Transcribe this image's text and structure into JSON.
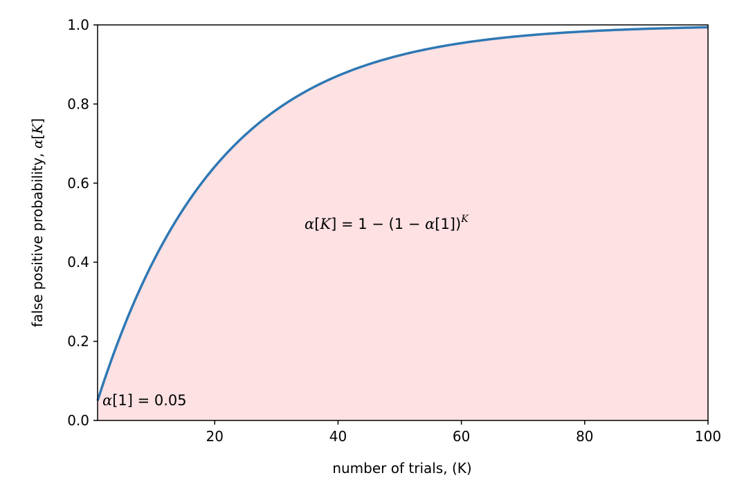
{
  "chart_data": {
    "type": "area",
    "xlabel": "number of trials, (K)",
    "ylabel_parts": {
      "main": "false positive probability, ",
      "symbol": "α",
      "open": "[",
      "var": "K",
      "close": "]"
    },
    "xlim": [
      1,
      100
    ],
    "ylim": [
      0.0,
      1.0
    ],
    "xticks": [
      20,
      40,
      60,
      80,
      100
    ],
    "xtick_labels": [
      "20",
      "40",
      "60",
      "80",
      "100"
    ],
    "yticks": [
      0.0,
      0.2,
      0.4,
      0.6,
      0.8,
      1.0
    ],
    "ytick_labels": [
      "0.0",
      "0.2",
      "0.4",
      "0.6",
      "0.8",
      "1.0"
    ],
    "alpha1": 0.05,
    "x": [
      1,
      2,
      3,
      4,
      5,
      6,
      8,
      10,
      12,
      15,
      20,
      25,
      30,
      35,
      40,
      45,
      50,
      55,
      60,
      65,
      70,
      75,
      80,
      85,
      90,
      95,
      100
    ],
    "y": [
      0.05,
      0.0975,
      0.1426,
      0.1855,
      0.2262,
      0.2649,
      0.3366,
      0.4013,
      0.4596,
      0.5367,
      0.6415,
      0.7226,
      0.7854,
      0.8339,
      0.8715,
      0.9006,
      0.9231,
      0.9405,
      0.9539,
      0.9643,
      0.9724,
      0.9787,
      0.9835,
      0.9872,
      0.9901,
      0.9923,
      0.9941
    ],
    "grid": false,
    "line_color": "#2f78b4",
    "fill_color": "#fde1e3",
    "annotations": {
      "formula": {
        "lhs_sym": "α",
        "lhs_open": "[",
        "lhs_var": "K",
        "lhs_close": "]",
        "rhs_a": " = 1 − (1 − ",
        "rhs_sym": "α",
        "rhs_b": "[1])",
        "exp": "K"
      },
      "alpha1": {
        "sym": "α",
        "rest": "[1] = 0.05"
      }
    }
  }
}
